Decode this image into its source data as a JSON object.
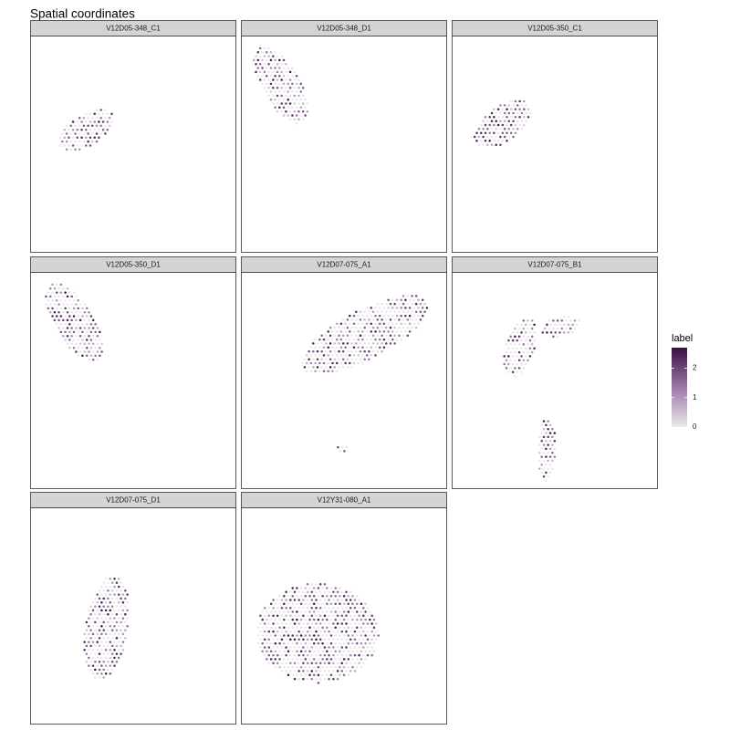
{
  "chart_data": {
    "type": "scatter",
    "title": "Spatial coordinates",
    "xlabel": "",
    "ylabel": "",
    "grid": false,
    "legend": {
      "title": "label",
      "placement": "right",
      "range": [
        0,
        2.7
      ],
      "ticks": [
        0,
        1,
        2
      ],
      "color_low": "#ebebeb",
      "color_high": "#3b0f45"
    },
    "colors": {
      "strip_fill": "#d4d4d4",
      "panel_border": "#333333",
      "spot_empty": "#e6e6e6"
    },
    "facets": [
      {
        "label": "V12D05-348_C1",
        "regions": [
          {
            "shape": "ellipse",
            "center": [
              0.27,
              0.435
            ],
            "radii": [
              0.148,
              0.074
            ],
            "angle": -28,
            "spacing": 0.021,
            "density": 0.6
          }
        ]
      },
      {
        "label": "V12D05-348_D1",
        "regions": [
          {
            "shape": "ellipse",
            "center": [
              0.19,
              0.225
            ],
            "radii": [
              0.205,
              0.092
            ],
            "angle": 58,
            "spacing": 0.021,
            "density": 0.6
          }
        ]
      },
      {
        "label": "V12D05-350_C1",
        "regions": [
          {
            "shape": "ellipse",
            "center": [
              0.245,
              0.405
            ],
            "radii": [
              0.158,
              0.082
            ],
            "angle": -35,
            "spacing": 0.021,
            "density": 0.6
          }
        ]
      },
      {
        "label": "V12D05-350_D1",
        "regions": [
          {
            "shape": "ellipse",
            "center": [
              0.21,
              0.23
            ],
            "radii": [
              0.21,
              0.094
            ],
            "angle": 56,
            "spacing": 0.021,
            "density": 0.6
          }
        ]
      },
      {
        "label": "V12D07-075_A1",
        "regions": [
          {
            "shape": "ellipse",
            "center": [
              0.6,
              0.29
            ],
            "radii": [
              0.345,
              0.115
            ],
            "angle": -26,
            "spacing": 0.021,
            "density": 0.55
          },
          {
            "shape": "ellipse",
            "center": [
              0.49,
              0.82
            ],
            "radii": [
              0.03,
              0.02
            ],
            "angle": 0,
            "spacing": 0.021,
            "density": 0.2
          }
        ]
      },
      {
        "label": "V12D07-075_B1",
        "regions": [
          {
            "shape": "ellipse",
            "center": [
              0.33,
              0.345
            ],
            "radii": [
              0.07,
              0.14
            ],
            "angle": 18,
            "spacing": 0.021,
            "density": 0.55
          },
          {
            "shape": "ellipse",
            "center": [
              0.53,
              0.25
            ],
            "radii": [
              0.1,
              0.045
            ],
            "angle": -10,
            "spacing": 0.021,
            "density": 0.45
          },
          {
            "shape": "ellipse",
            "center": [
              0.46,
              0.82
            ],
            "radii": [
              0.045,
              0.15
            ],
            "angle": 2,
            "spacing": 0.021,
            "density": 0.6
          }
        ]
      },
      {
        "label": "V12D07-075_D1",
        "regions": [
          {
            "shape": "ellipse",
            "center": [
              0.37,
              0.555
            ],
            "radii": [
              0.105,
              0.245
            ],
            "angle": 10,
            "spacing": 0.021,
            "density": 0.6
          }
        ]
      },
      {
        "label": "V12Y31-080_A1",
        "regions": [
          {
            "shape": "ellipse",
            "center": [
              0.37,
              0.58
            ],
            "radii": [
              0.3,
              0.23
            ],
            "angle": 0,
            "spacing": 0.021,
            "density": 0.55
          }
        ]
      }
    ]
  }
}
